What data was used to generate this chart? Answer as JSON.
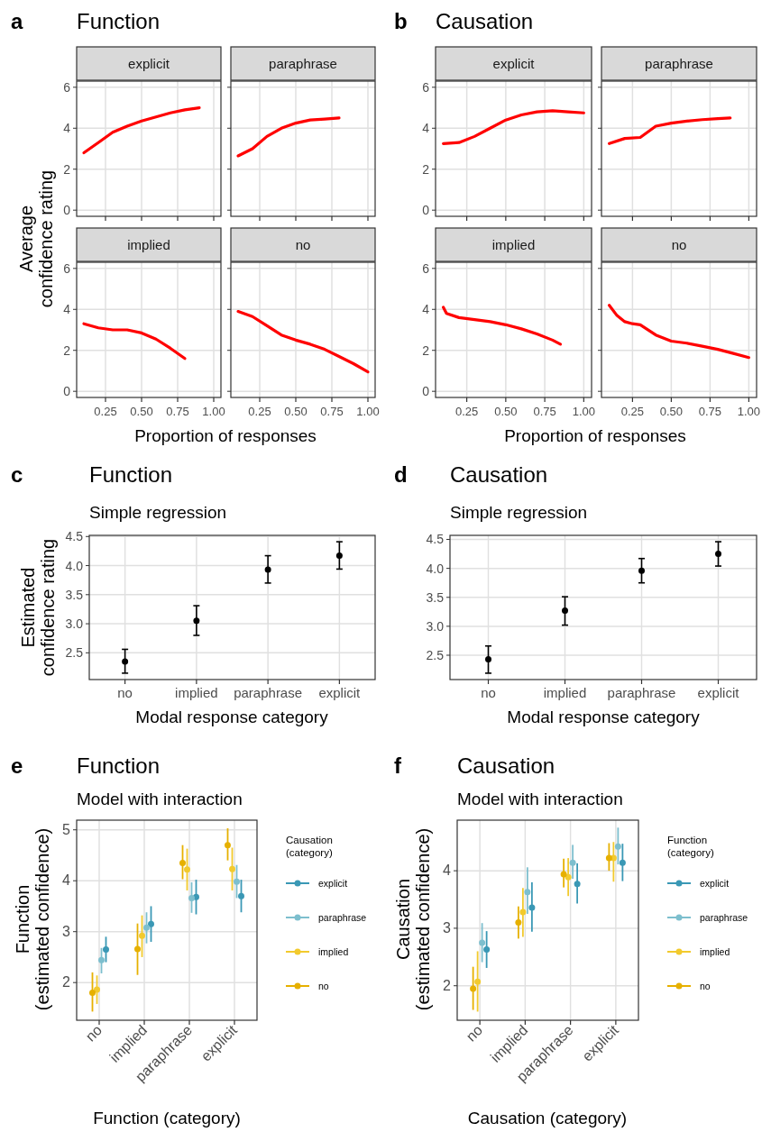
{
  "chart_data": [
    {
      "type": "line",
      "title": "explicit",
      "annotations": [
        "a",
        "Function"
      ],
      "ylabel": "Average\nconfidence rating",
      "xlim": [
        0.05,
        1.05
      ],
      "ylim": [
        -0.3,
        6.3
      ],
      "xticks": [
        {
          "value": 0.25,
          "label": null
        },
        {
          "value": 0.5,
          "label": null
        },
        {
          "value": 0.75,
          "label": null
        },
        {
          "value": 1,
          "label": null
        }
      ],
      "yticks": [
        0,
        2,
        4,
        6
      ],
      "grid": true,
      "tick_labels": "y",
      "series": [
        {
          "color": "#ff0000",
          "x": [
            0.1,
            0.2,
            0.3,
            0.4,
            0.5,
            0.6,
            0.7,
            0.8,
            0.9
          ],
          "values": [
            2.8,
            3.3,
            3.8,
            4.1,
            4.35,
            4.55,
            4.75,
            4.9,
            5.0
          ]
        }
      ]
    },
    {
      "type": "line",
      "title": "paraphrase",
      "xlim": [
        0.05,
        1.05
      ],
      "ylim": [
        -0.3,
        6.3
      ],
      "xticks": [
        {
          "value": 0.25,
          "label": null
        },
        {
          "value": 0.5,
          "label": null
        },
        {
          "value": 0.75,
          "label": null
        },
        {
          "value": 1,
          "label": null
        }
      ],
      "yticks": [
        0,
        2,
        4,
        6
      ],
      "grid": true,
      "tick_labels": false,
      "series": [
        {
          "color": "#ff0000",
          "x": [
            0.1,
            0.2,
            0.3,
            0.4,
            0.5,
            0.6,
            0.7,
            0.8
          ],
          "values": [
            2.65,
            3.0,
            3.6,
            4.0,
            4.25,
            4.4,
            4.45,
            4.5
          ]
        }
      ]
    },
    {
      "type": "line",
      "title": "implied",
      "xlabel": "Proportion of responses",
      "xlim": [
        0.05,
        1.05
      ],
      "ylim": [
        -0.3,
        6.3
      ],
      "xticks": [
        {
          "value": 0.25,
          "label": "0.25"
        },
        {
          "value": 0.5,
          "label": "0.50"
        },
        {
          "value": 0.75,
          "label": "0.75"
        },
        {
          "value": 1,
          "label": "1.00"
        }
      ],
      "yticks": [
        0,
        2,
        4,
        6
      ],
      "grid": true,
      "series": [
        {
          "color": "#ff0000",
          "x": [
            0.1,
            0.2,
            0.3,
            0.4,
            0.5,
            0.6,
            0.7,
            0.8
          ],
          "values": [
            3.3,
            3.1,
            3.0,
            3.0,
            2.85,
            2.55,
            2.1,
            1.6
          ]
        }
      ]
    },
    {
      "type": "line",
      "title": "no",
      "xlim": [
        0.05,
        1.05
      ],
      "ylim": [
        -0.3,
        6.3
      ],
      "xticks": [
        {
          "value": 0.25,
          "label": "0.25"
        },
        {
          "value": 0.5,
          "label": "0.50"
        },
        {
          "value": 0.75,
          "label": "0.75"
        },
        {
          "value": 1,
          "label": "1.00"
        }
      ],
      "yticks": [
        0,
        2,
        4,
        6
      ],
      "grid": true,
      "tick_labels": "x",
      "series": [
        {
          "color": "#ff0000",
          "x": [
            0.1,
            0.2,
            0.3,
            0.4,
            0.5,
            0.6,
            0.7,
            0.8,
            0.9,
            1.0
          ],
          "values": [
            3.9,
            3.65,
            3.2,
            2.75,
            2.5,
            2.3,
            2.05,
            1.7,
            1.35,
            0.95
          ]
        }
      ]
    },
    {
      "type": "line",
      "title": "explicit",
      "annotations": [
        "b",
        "Causation"
      ],
      "xlim": [
        0.05,
        1.05
      ],
      "ylim": [
        -0.3,
        6.3
      ],
      "xticks": [
        {
          "value": 0.25,
          "label": null
        },
        {
          "value": 0.5,
          "label": null
        },
        {
          "value": 0.75,
          "label": null
        },
        {
          "value": 1,
          "label": null
        }
      ],
      "yticks": [
        0,
        2,
        4,
        6
      ],
      "grid": true,
      "tick_labels": "y",
      "series": [
        {
          "color": "#ff0000",
          "x": [
            0.1,
            0.2,
            0.3,
            0.4,
            0.5,
            0.6,
            0.7,
            0.8,
            0.9,
            1.0
          ],
          "values": [
            3.25,
            3.3,
            3.6,
            4.0,
            4.4,
            4.65,
            4.8,
            4.85,
            4.8,
            4.75
          ]
        }
      ]
    },
    {
      "type": "line",
      "title": "paraphrase",
      "xlim": [
        0.05,
        1.05
      ],
      "ylim": [
        -0.3,
        6.3
      ],
      "xticks": [
        {
          "value": 0.25,
          "label": null
        },
        {
          "value": 0.5,
          "label": null
        },
        {
          "value": 0.75,
          "label": null
        },
        {
          "value": 1,
          "label": null
        }
      ],
      "yticks": [
        0,
        2,
        4,
        6
      ],
      "grid": true,
      "tick_labels": false,
      "series": [
        {
          "color": "#ff0000",
          "x": [
            0.1,
            0.2,
            0.3,
            0.4,
            0.5,
            0.6,
            0.7,
            0.8,
            0.88
          ],
          "values": [
            3.25,
            3.5,
            3.55,
            4.1,
            4.25,
            4.35,
            4.42,
            4.47,
            4.5
          ]
        }
      ]
    },
    {
      "type": "line",
      "title": "implied",
      "xlabel": "Proportion of responses",
      "xlim": [
        0.05,
        1.05
      ],
      "ylim": [
        -0.3,
        6.3
      ],
      "xticks": [
        {
          "value": 0.25,
          "label": "0.25"
        },
        {
          "value": 0.5,
          "label": "0.50"
        },
        {
          "value": 0.75,
          "label": "0.75"
        },
        {
          "value": 1,
          "label": "1.00"
        }
      ],
      "yticks": [
        0,
        2,
        4,
        6
      ],
      "grid": true,
      "series": [
        {
          "color": "#ff0000",
          "x": [
            0.1,
            0.12,
            0.2,
            0.3,
            0.4,
            0.5,
            0.6,
            0.7,
            0.8,
            0.85
          ],
          "values": [
            4.1,
            3.8,
            3.6,
            3.5,
            3.4,
            3.25,
            3.05,
            2.8,
            2.5,
            2.3
          ]
        }
      ]
    },
    {
      "type": "line",
      "title": "no",
      "xlim": [
        0.05,
        1.05
      ],
      "ylim": [
        -0.3,
        6.3
      ],
      "xticks": [
        {
          "value": 0.25,
          "label": "0.25"
        },
        {
          "value": 0.5,
          "label": "0.50"
        },
        {
          "value": 0.75,
          "label": "0.75"
        },
        {
          "value": 1,
          "label": "1.00"
        }
      ],
      "yticks": [
        0,
        2,
        4,
        6
      ],
      "grid": true,
      "tick_labels": "x",
      "series": [
        {
          "color": "#ff0000",
          "x": [
            0.1,
            0.15,
            0.2,
            0.25,
            0.3,
            0.4,
            0.5,
            0.6,
            0.7,
            0.8,
            0.9,
            1.0
          ],
          "values": [
            4.2,
            3.7,
            3.4,
            3.3,
            3.25,
            2.75,
            2.45,
            2.35,
            2.2,
            2.05,
            1.85,
            1.65
          ]
        }
      ]
    },
    {
      "type": "scatter",
      "title": "Function",
      "subtitle": "Simple regression",
      "annotations": [
        "c"
      ],
      "xlabel": "Modal response category",
      "ylabel": "Estimated\nconfidence rating",
      "categories": [
        "no",
        "implied",
        "paraphrase",
        "explicit"
      ],
      "ylim": [
        2.04,
        4.52
      ],
      "yticks": [
        {
          "value": 2.5,
          "label": "2.5"
        },
        {
          "value": 3,
          "label": "3.0"
        },
        {
          "value": 3.5,
          "label": "3.5"
        },
        {
          "value": 4,
          "label": "4.0"
        },
        {
          "value": 4.5,
          "label": "4.5"
        }
      ],
      "grid": true,
      "marker": "circle",
      "series": [
        {
          "color": "#000000",
          "values": [
            2.35,
            3.05,
            3.93,
            4.17
          ],
          "errors": [
            [
              2.15,
              2.56
            ],
            [
              2.8,
              3.31
            ],
            [
              3.7,
              4.17
            ],
            [
              3.94,
              4.41
            ]
          ]
        }
      ]
    },
    {
      "type": "scatter",
      "title": "Causation",
      "subtitle": "Simple regression",
      "annotations": [
        "d"
      ],
      "xlabel": "Modal response category",
      "categories": [
        "no",
        "implied",
        "paraphrase",
        "explicit"
      ],
      "ylim": [
        2.08,
        4.57
      ],
      "yticks": [
        {
          "value": 2.5,
          "label": "2.5"
        },
        {
          "value": 3,
          "label": "3.0"
        },
        {
          "value": 3.5,
          "label": "3.5"
        },
        {
          "value": 4,
          "label": "4.0"
        },
        {
          "value": 4.5,
          "label": "4.5"
        }
      ],
      "grid": true,
      "marker": "circle",
      "series": [
        {
          "color": "#000000",
          "values": [
            2.43,
            3.27,
            3.96,
            4.25
          ],
          "errors": [
            [
              2.19,
              2.66
            ],
            [
              3.02,
              3.51
            ],
            [
              3.75,
              4.17
            ],
            [
              4.04,
              4.46
            ]
          ]
        }
      ]
    },
    {
      "type": "scatter",
      "title": "Function",
      "subtitle": "Model with interaction",
      "annotations": [
        "e"
      ],
      "xlabel": "Function (category)",
      "ylabel": "Function\n(estimated confidence)",
      "legend_title": "Causation\n(category)",
      "legend": "right",
      "categories": [
        "no",
        "implied",
        "paraphrase",
        "explicit"
      ],
      "ylim": [
        1.26,
        5.19
      ],
      "yticks": [
        2,
        3,
        4,
        5
      ],
      "grid": true,
      "marker": "circle",
      "series": [
        {
          "name": "explicit",
          "color": "#3a98b5",
          "values": [
            2.65,
            3.15,
            3.68,
            3.7
          ],
          "errors": [
            [
              2.4,
              2.9
            ],
            [
              2.8,
              3.5
            ],
            [
              3.34,
              4.02
            ],
            [
              3.38,
              4.02
            ]
          ]
        },
        {
          "name": "paraphrase",
          "color": "#7dbfce",
          "values": [
            2.44,
            3.08,
            3.66,
            3.98
          ],
          "errors": [
            [
              2.18,
              2.68
            ],
            [
              2.77,
              3.38
            ],
            [
              3.37,
              3.97
            ],
            [
              3.66,
              4.31
            ]
          ]
        },
        {
          "name": "implied",
          "color": "#f2ca2e",
          "values": [
            1.86,
            2.92,
            4.22,
            4.23
          ],
          "errors": [
            [
              1.58,
              2.14
            ],
            [
              2.5,
              3.32
            ],
            [
              3.81,
              4.63
            ],
            [
              3.81,
              4.65
            ]
          ]
        },
        {
          "name": "no",
          "color": "#e6b000",
          "values": [
            1.8,
            2.66,
            4.35,
            4.7
          ],
          "errors": [
            [
              1.43,
              2.2
            ],
            [
              2.15,
              3.16
            ],
            [
              4.03,
              4.7
            ],
            [
              4.4,
              5.03
            ]
          ]
        }
      ]
    },
    {
      "type": "scatter",
      "title": "Causation",
      "subtitle": "Model with interaction",
      "annotations": [
        "f"
      ],
      "xlabel": "Causation (category)",
      "ylabel": "Causation\n(estimated confidence)",
      "legend_title": "Function\n(category)",
      "legend": "right",
      "categories": [
        "no",
        "implied",
        "paraphrase",
        "explicit"
      ],
      "ylim": [
        1.4,
        4.88
      ],
      "yticks": [
        2,
        3,
        4
      ],
      "grid": true,
      "marker": "circle",
      "series": [
        {
          "name": "explicit",
          "color": "#3a98b5",
          "values": [
            2.63,
            3.36,
            3.77,
            4.14
          ],
          "errors": [
            [
              2.31,
              2.95
            ],
            [
              2.94,
              3.8
            ],
            [
              3.43,
              4.13
            ],
            [
              3.82,
              4.47
            ]
          ]
        },
        {
          "name": "paraphrase",
          "color": "#7dbfce",
          "values": [
            2.75,
            3.63,
            4.14,
            4.42
          ],
          "errors": [
            [
              2.41,
              3.09
            ],
            [
              3.25,
              4.06
            ],
            [
              3.86,
              4.45
            ],
            [
              4.11,
              4.75
            ]
          ]
        },
        {
          "name": "implied",
          "color": "#f2ca2e",
          "values": [
            2.07,
            3.28,
            3.89,
            4.22
          ],
          "errors": [
            [
              1.55,
              2.6
            ],
            [
              2.85,
              3.7
            ],
            [
              3.56,
              4.22
            ],
            [
              3.81,
              4.5
            ]
          ]
        },
        {
          "name": "no",
          "color": "#e6b000",
          "values": [
            1.95,
            3.1,
            3.94,
            4.22
          ],
          "errors": [
            [
              1.58,
              2.33
            ],
            [
              2.82,
              3.38
            ],
            [
              3.71,
              4.21
            ],
            [
              4.0,
              4.48
            ]
          ]
        }
      ]
    }
  ]
}
